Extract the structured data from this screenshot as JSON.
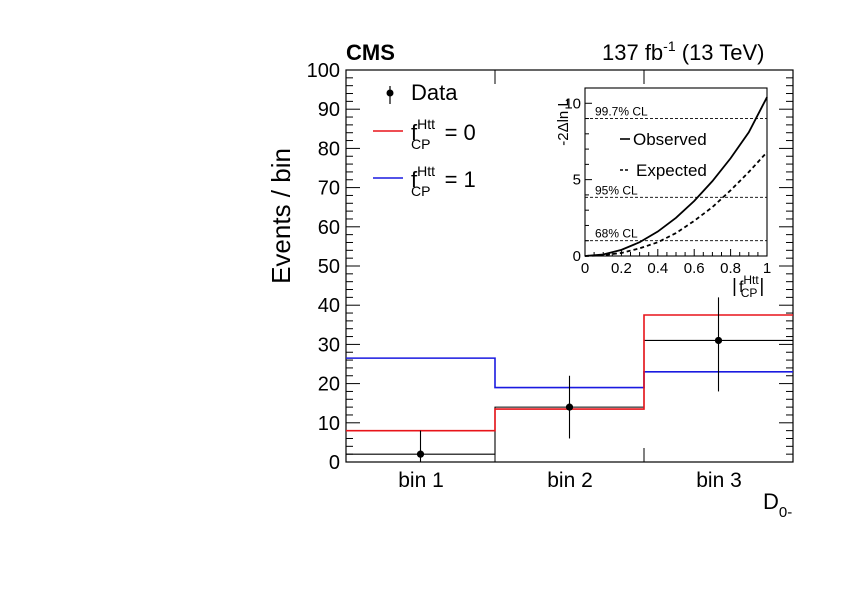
{
  "header": {
    "experiment": "CMS",
    "lumi": "137 fb",
    "lumi_exp": "-1",
    "energy": "(13 TeV)"
  },
  "legend": {
    "data_label": "Data",
    "f_letter": "f",
    "f_sup": "Htt",
    "f_sub": "CP",
    "f0_value": "= 0",
    "f1_value": "= 1"
  },
  "inset": {
    "ylabel": "-2Δln L",
    "xlabel_bar_left": "|",
    "xlabel_bar_right": "|",
    "observed_label": "Observed",
    "expected_label": "Expected",
    "cl_labels": [
      "68% CL",
      "95% CL",
      "99.7% CL"
    ]
  },
  "colors": {
    "data": "#000000",
    "f0": "#e8141a",
    "f1": "#1a1ae0",
    "axes": "#000000"
  },
  "chart_data": [
    {
      "type": "bar",
      "style": "step-histogram",
      "categories": [
        "bin 1",
        "bin 2",
        "bin 3"
      ],
      "xlabel": "D",
      "xlabel_sub": "0-",
      "ylabel": "Events / bin",
      "ylim": [
        0,
        100
      ],
      "yticks": [
        "0",
        "10",
        "20",
        "30",
        "40",
        "50",
        "60",
        "70",
        "80",
        "90",
        "100"
      ],
      "series": [
        {
          "name": "Data",
          "kind": "points",
          "values": [
            2,
            14,
            31
          ],
          "err_low": [
            2,
            8,
            13
          ],
          "err_high": [
            6,
            8,
            11
          ]
        },
        {
          "name": "f_CP^Htt = 0",
          "kind": "step",
          "values": [
            8,
            13.5,
            37.5
          ]
        },
        {
          "name": "f_CP^Htt = 1",
          "kind": "step",
          "values": [
            26.5,
            19,
            23
          ]
        }
      ],
      "data_step_values": [
        2,
        14,
        31
      ]
    },
    {
      "type": "line",
      "title": "",
      "xlim": [
        0,
        1
      ],
      "ylim": [
        0,
        11
      ],
      "xticks": [
        "0",
        "0.2",
        "0.4",
        "0.6",
        "0.8",
        "1"
      ],
      "yticks": [
        "0",
        "5",
        "10"
      ],
      "x": [
        0,
        0.1,
        0.2,
        0.3,
        0.4,
        0.5,
        0.6,
        0.7,
        0.8,
        0.9,
        1.0
      ],
      "series": [
        {
          "name": "Observed",
          "style": "solid",
          "values": [
            0,
            0.1,
            0.4,
            0.9,
            1.6,
            2.5,
            3.6,
            4.9,
            6.4,
            8.1,
            10.4
          ]
        },
        {
          "name": "Expected",
          "style": "dashed",
          "values": [
            0,
            0.05,
            0.2,
            0.5,
            0.9,
            1.5,
            2.3,
            3.2,
            4.3,
            5.5,
            6.8
          ]
        }
      ],
      "cl_levels": [
        1.0,
        3.84,
        9.0
      ]
    }
  ]
}
